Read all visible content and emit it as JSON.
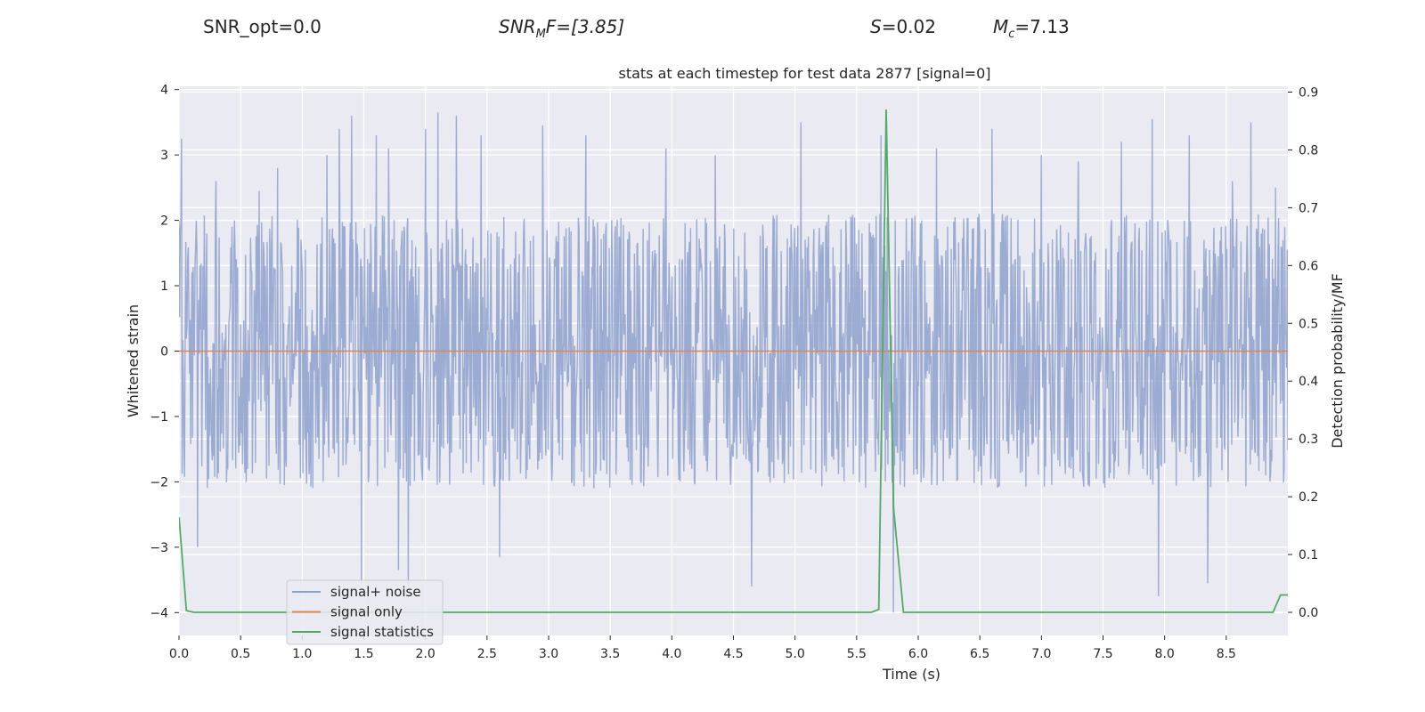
{
  "header": {
    "snr_opt": "SNR_opt=0.0",
    "snr_mf_base": "SNR",
    "snr_mf_sub": "M",
    "snr_mf_rest": "F=[3.85]",
    "s_symbol": "S",
    "s_value": "=0.02",
    "mc_base": "M",
    "mc_sub": "c",
    "mc_value": "=7.13"
  },
  "colors": {
    "plot_background": "#eaeaf2",
    "grid": "#ffffff",
    "signal_noise": "#8da0cb",
    "signal_only": "#dd8452",
    "signal_statistics": "#55a868"
  },
  "chart_data": {
    "type": "line",
    "title": "stats at each timestep for test data 2877 [signal=0]",
    "xlabel": "Time (s)",
    "ylabel": "Whitened strain",
    "y2label": "Detection probability/MF",
    "xlim": [
      0,
      9.0
    ],
    "ylim": [
      -4.35,
      4.05
    ],
    "y2lim": [
      -0.04,
      0.91
    ],
    "x_ticks": [
      "0.0",
      "0.5",
      "1.0",
      "1.5",
      "2.0",
      "2.5",
      "3.0",
      "3.5",
      "4.0",
      "4.5",
      "5.0",
      "5.5",
      "6.0",
      "6.5",
      "7.0",
      "7.5",
      "8.0",
      "8.5"
    ],
    "y_ticks": [
      "4",
      "3",
      "2",
      "1",
      "0",
      "−1",
      "−2",
      "−3",
      "−4"
    ],
    "y2_ticks": [
      "0.9",
      "0.8",
      "0.7",
      "0.6",
      "0.5",
      "0.4",
      "0.3",
      "0.2",
      "0.1",
      "0.0"
    ],
    "grid": true,
    "legend_position": "lower-left",
    "series": [
      {
        "name": "signal+ noise",
        "axis": "left",
        "style": "dense noise, duration 9 s",
        "amplitude_typical": 1.4,
        "spikes": [
          {
            "x": 0.02,
            "y": 3.25
          },
          {
            "x": 0.15,
            "y": -3.0
          },
          {
            "x": 0.3,
            "y": 2.6
          },
          {
            "x": 0.65,
            "y": 2.45
          },
          {
            "x": 0.8,
            "y": 2.8
          },
          {
            "x": 1.2,
            "y": 3.0
          },
          {
            "x": 1.3,
            "y": 3.4
          },
          {
            "x": 1.4,
            "y": 3.6
          },
          {
            "x": 1.48,
            "y": -3.55
          },
          {
            "x": 1.6,
            "y": 3.3
          },
          {
            "x": 1.7,
            "y": 3.1
          },
          {
            "x": 1.78,
            "y": -3.35
          },
          {
            "x": 1.86,
            "y": -3.6
          },
          {
            "x": 2.0,
            "y": 3.4
          },
          {
            "x": 2.1,
            "y": 3.65
          },
          {
            "x": 2.25,
            "y": 3.6
          },
          {
            "x": 2.45,
            "y": 3.3
          },
          {
            "x": 2.6,
            "y": -3.15
          },
          {
            "x": 2.95,
            "y": 3.45
          },
          {
            "x": 3.3,
            "y": 3.3
          },
          {
            "x": 3.95,
            "y": 3.1
          },
          {
            "x": 4.35,
            "y": 3.0
          },
          {
            "x": 4.65,
            "y": -3.6
          },
          {
            "x": 5.05,
            "y": 3.5
          },
          {
            "x": 5.7,
            "y": 3.3
          },
          {
            "x": 5.8,
            "y": -4.0
          },
          {
            "x": 6.15,
            "y": 3.1
          },
          {
            "x": 6.6,
            "y": 3.4
          },
          {
            "x": 7.0,
            "y": 3.0
          },
          {
            "x": 7.3,
            "y": 2.9
          },
          {
            "x": 7.65,
            "y": 3.2
          },
          {
            "x": 7.9,
            "y": 3.55
          },
          {
            "x": 7.95,
            "y": -3.75
          },
          {
            "x": 8.2,
            "y": 3.3
          },
          {
            "x": 8.35,
            "y": -3.55
          },
          {
            "x": 8.55,
            "y": 2.6
          },
          {
            "x": 8.7,
            "y": 3.5
          },
          {
            "x": 8.9,
            "y": 2.5
          }
        ]
      },
      {
        "name": "signal only",
        "axis": "left",
        "x": [
          0.0,
          9.0
        ],
        "y": [
          0.0,
          0.0
        ]
      },
      {
        "name": "signal statistics",
        "axis": "right",
        "x": [
          0.0,
          0.06,
          0.12,
          5.62,
          5.68,
          5.74,
          5.8,
          5.88,
          8.88,
          8.94,
          9.0
        ],
        "y": [
          0.165,
          0.003,
          0.0,
          0.0,
          0.005,
          0.87,
          0.18,
          0.0,
          0.0,
          0.03,
          0.03
        ]
      }
    ]
  }
}
